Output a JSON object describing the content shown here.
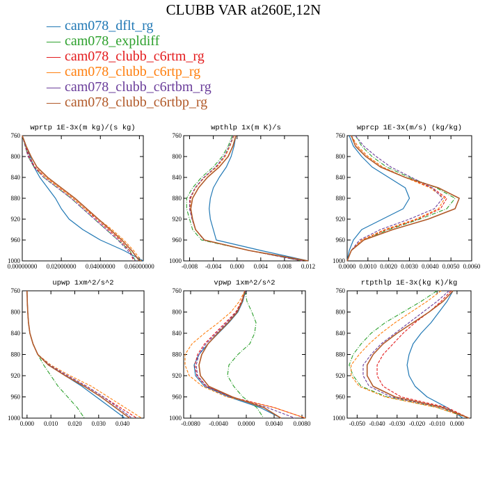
{
  "title": "CLUBB VAR at260E,12N",
  "legend": [
    {
      "name": "cam078_dflt_rg",
      "color": "#1f77b4"
    },
    {
      "name": "cam078_expldiff",
      "color": "#2ca02c"
    },
    {
      "name": "cam078_clubb_c6rtm_rg",
      "color": "#e31a1c"
    },
    {
      "name": "cam078_clubb_c6rtp_rg",
      "color": "#ff7f0e"
    },
    {
      "name": "cam078_clubb_c6rtbm_rg",
      "color": "#6a3d9a"
    },
    {
      "name": "cam078_clubb_c6rtbp_rg",
      "color": "#b15928"
    }
  ],
  "chart_data": [
    {
      "type": "line",
      "title": "wprtp  1E-3x(m kg)/(s kg)",
      "xlim": [
        0.0,
        0.062
      ],
      "ylim": [
        760,
        1000
      ],
      "y_inverted": true,
      "xticks": [
        0,
        0.02,
        0.04,
        0.06
      ],
      "xtick_labels": [
        "0.00000000",
        "0.02000000",
        "0.04000000",
        "0.06000000"
      ],
      "yticks": [
        760,
        800,
        840,
        880,
        920,
        960,
        1000
      ],
      "y": [
        760,
        780,
        800,
        820,
        840,
        860,
        880,
        900,
        920,
        940,
        960,
        980,
        1000
      ],
      "series": [
        {
          "name": "cam078_dflt_rg",
          "x": [
            0.0,
            0.002,
            0.004,
            0.006,
            0.009,
            0.013,
            0.017,
            0.02,
            0.024,
            0.031,
            0.04,
            0.052,
            0.062
          ]
        },
        {
          "name": "cam078_expldiff",
          "x": [
            0.0,
            0.0015,
            0.003,
            0.006,
            0.011,
            0.018,
            0.025,
            0.031,
            0.037,
            0.043,
            0.049,
            0.055,
            0.058
          ]
        },
        {
          "name": "cam078_clubb_c6rtm_rg",
          "x": [
            0.0,
            0.0017,
            0.0035,
            0.0065,
            0.012,
            0.019,
            0.026,
            0.032,
            0.038,
            0.044,
            0.05,
            0.055,
            0.057
          ]
        },
        {
          "name": "cam078_clubb_c6rtp_rg",
          "x": [
            0.0,
            0.0015,
            0.003,
            0.006,
            0.012,
            0.019,
            0.026,
            0.032,
            0.039,
            0.046,
            0.052,
            0.057,
            0.061
          ]
        },
        {
          "name": "cam078_clubb_c6rtbm_rg",
          "x": [
            0.0,
            0.0015,
            0.003,
            0.006,
            0.011,
            0.018,
            0.025,
            0.031,
            0.037,
            0.043,
            0.049,
            0.054,
            0.058
          ]
        },
        {
          "name": "cam078_clubb_c6rtbp_rg",
          "x": [
            0.0,
            0.002,
            0.0045,
            0.0075,
            0.013,
            0.02,
            0.027,
            0.033,
            0.039,
            0.045,
            0.051,
            0.056,
            0.06
          ]
        }
      ]
    },
    {
      "type": "line",
      "title": "wpthlp  1x(m K)/s",
      "xlim": [
        -0.009,
        0.012
      ],
      "ylim": [
        760,
        1000
      ],
      "y_inverted": true,
      "xticks": [
        -0.008,
        -0.004,
        0.0,
        0.004,
        0.008,
        0.012
      ],
      "xtick_labels": [
        "-0.008",
        "-0.004",
        "0.000",
        "0.004",
        "0.008",
        "0.012"
      ],
      "yticks": [
        760,
        800,
        840,
        880,
        920,
        960,
        1000
      ],
      "y": [
        760,
        780,
        800,
        820,
        840,
        860,
        880,
        900,
        920,
        940,
        960,
        980,
        1000
      ],
      "series": [
        {
          "name": "cam078_dflt_rg",
          "x": [
            -0.0002,
            -0.0005,
            -0.001,
            -0.0018,
            -0.003,
            -0.004,
            -0.0045,
            -0.0047,
            -0.0045,
            -0.004,
            -0.0035,
            0.004,
            0.012
          ]
        },
        {
          "name": "cam078_expldiff",
          "x": [
            -0.0008,
            -0.0015,
            -0.0025,
            -0.004,
            -0.006,
            -0.0075,
            -0.0085,
            -0.0085,
            -0.008,
            -0.0075,
            -0.006,
            0.002,
            0.011
          ]
        },
        {
          "name": "cam078_clubb_c6rtm_rg",
          "x": [
            -0.0006,
            -0.0012,
            -0.002,
            -0.0035,
            -0.0055,
            -0.007,
            -0.008,
            -0.008,
            -0.0075,
            -0.007,
            -0.0055,
            0.002,
            0.011
          ]
        },
        {
          "name": "cam078_clubb_c6rtp_rg",
          "x": [
            -0.0005,
            -0.0012,
            -0.002,
            -0.0034,
            -0.0055,
            -0.007,
            -0.0078,
            -0.0079,
            -0.0075,
            -0.007,
            -0.0055,
            0.002,
            0.011
          ]
        },
        {
          "name": "cam078_clubb_c6rtbm_rg",
          "x": [
            -0.0006,
            -0.0013,
            -0.0022,
            -0.0036,
            -0.0056,
            -0.0071,
            -0.0079,
            -0.008,
            -0.0076,
            -0.007,
            -0.0056,
            0.002,
            0.011
          ]
        },
        {
          "name": "cam078_clubb_c6rtbp_rg",
          "x": [
            -0.0002,
            -0.0007,
            -0.0015,
            -0.003,
            -0.005,
            -0.0065,
            -0.0075,
            -0.0078,
            -0.0075,
            -0.007,
            -0.0055,
            0.002,
            0.012
          ]
        }
      ]
    },
    {
      "type": "line",
      "title": "wprcp  1E-3x(m/s) (kg/kg)",
      "xlim": [
        0.0,
        0.006
      ],
      "ylim": [
        760,
        1000
      ],
      "y_inverted": true,
      "xticks": [
        0,
        0.001,
        0.002,
        0.003,
        0.004,
        0.005,
        0.006
      ],
      "xtick_labels": [
        "0.0000",
        "0.0010",
        "0.0020",
        "0.0030",
        "0.0040",
        "0.0050",
        "0.0060"
      ],
      "yticks": [
        760,
        800,
        840,
        880,
        920,
        960,
        1000
      ],
      "y": [
        760,
        780,
        800,
        820,
        840,
        860,
        880,
        900,
        920,
        940,
        960,
        980,
        1000
      ],
      "series": [
        {
          "name": "cam078_dflt_rg",
          "x": [
            0.0001,
            0.0003,
            0.0007,
            0.0012,
            0.002,
            0.0028,
            0.003,
            0.0027,
            0.0017,
            0.0007,
            0.0003,
            0.0001,
            0.0
          ]
        },
        {
          "name": "cam078_expldiff",
          "x": [
            0.0004,
            0.0007,
            0.0012,
            0.0019,
            0.003,
            0.0043,
            0.0052,
            0.0048,
            0.0035,
            0.002,
            0.0008,
            0.0002,
            0.0
          ]
        },
        {
          "name": "cam078_clubb_c6rtm_rg",
          "x": [
            0.0002,
            0.0005,
            0.001,
            0.0017,
            0.0028,
            0.0041,
            0.0048,
            0.0045,
            0.0034,
            0.0019,
            0.0007,
            0.0002,
            0.0
          ]
        },
        {
          "name": "cam078_clubb_c6rtp_rg",
          "x": [
            0.0002,
            0.0005,
            0.001,
            0.0017,
            0.0028,
            0.004,
            0.0047,
            0.0044,
            0.0033,
            0.0018,
            0.0007,
            0.0002,
            0.0
          ]
        },
        {
          "name": "cam078_clubb_c6rtbm_rg",
          "x": [
            0.0004,
            0.0008,
            0.0014,
            0.0021,
            0.0031,
            0.0041,
            0.0046,
            0.0042,
            0.003,
            0.0016,
            0.0006,
            0.0002,
            0.0
          ]
        },
        {
          "name": "cam078_clubb_c6rtbp_rg",
          "x": [
            0.0002,
            0.0004,
            0.0009,
            0.0016,
            0.0028,
            0.0044,
            0.0054,
            0.0052,
            0.0039,
            0.0022,
            0.0008,
            0.0002,
            0.0
          ]
        }
      ]
    },
    {
      "type": "line",
      "title": "upwp  1xm^2/s^2",
      "xlim": [
        -0.002,
        0.049
      ],
      "ylim": [
        760,
        1000
      ],
      "y_inverted": true,
      "xticks": [
        0,
        0.01,
        0.02,
        0.03,
        0.04
      ],
      "xtick_labels": [
        "0.000",
        "0.010",
        "0.020",
        "0.030",
        "0.040"
      ],
      "yticks": [
        760,
        800,
        840,
        880,
        920,
        960,
        1000
      ],
      "y": [
        760,
        780,
        800,
        820,
        840,
        860,
        880,
        900,
        920,
        940,
        960,
        980,
        1000
      ],
      "series": [
        {
          "name": "cam078_dflt_rg",
          "x": [
            0.0,
            0.0001,
            0.0003,
            0.0006,
            0.0012,
            0.0025,
            0.0045,
            0.009,
            0.016,
            0.023,
            0.029,
            0.035,
            0.041
          ]
        },
        {
          "name": "cam078_expldiff",
          "x": [
            0.0,
            0.0001,
            0.0003,
            0.0006,
            0.0012,
            0.0025,
            0.0045,
            0.007,
            0.01,
            0.013,
            0.017,
            0.021,
            0.024
          ]
        },
        {
          "name": "cam078_clubb_c6rtm_rg",
          "x": [
            0.0,
            0.0001,
            0.0003,
            0.0006,
            0.0012,
            0.0025,
            0.0045,
            0.009,
            0.017,
            0.025,
            0.032,
            0.039,
            0.046
          ]
        },
        {
          "name": "cam078_clubb_c6rtp_rg",
          "x": [
            0.0,
            0.0001,
            0.0003,
            0.0006,
            0.0012,
            0.0025,
            0.0045,
            0.01,
            0.018,
            0.027,
            0.034,
            0.041,
            0.048
          ]
        },
        {
          "name": "cam078_clubb_c6rtbm_rg",
          "x": [
            0.0,
            0.0001,
            0.0003,
            0.0006,
            0.0012,
            0.0025,
            0.0045,
            0.0095,
            0.017,
            0.025,
            0.032,
            0.038,
            0.044
          ]
        },
        {
          "name": "cam078_clubb_c6rtbp_rg",
          "x": [
            0.0,
            0.0001,
            0.0003,
            0.0006,
            0.0012,
            0.0025,
            0.0045,
            0.009,
            0.016,
            0.024,
            0.031,
            0.037,
            0.043
          ]
        }
      ]
    },
    {
      "type": "line",
      "title": "vpwp  1xm^2/s^2",
      "xlim": [
        -0.009,
        0.0085
      ],
      "ylim": [
        760,
        1000
      ],
      "y_inverted": true,
      "xticks": [
        -0.008,
        -0.004,
        0.0,
        0.004,
        0.008
      ],
      "xtick_labels": [
        "-0.0080",
        "-0.0040",
        "0.0000",
        "0.0040",
        "0.0080"
      ],
      "yticks": [
        760,
        800,
        840,
        880,
        920,
        960,
        1000
      ],
      "y": [
        760,
        780,
        800,
        820,
        840,
        860,
        880,
        900,
        920,
        940,
        960,
        980,
        1000
      ],
      "series": [
        {
          "name": "cam078_dflt_rg",
          "x": [
            -0.0001,
            -0.0005,
            -0.0012,
            -0.0025,
            -0.004,
            -0.0055,
            -0.0068,
            -0.0075,
            -0.0073,
            -0.006,
            -0.0025,
            0.002,
            0.005
          ]
        },
        {
          "name": "cam078_expldiff",
          "x": [
            -0.0002,
            0.0001,
            0.0008,
            0.0014,
            0.0012,
            0.0005,
            -0.0012,
            -0.0025,
            -0.0027,
            -0.0018,
            -0.0005,
            0.0015,
            0.0025
          ]
        },
        {
          "name": "cam078_clubb_c6rtm_rg",
          "x": [
            -0.0002,
            -0.0007,
            -0.0015,
            -0.003,
            -0.0045,
            -0.006,
            -0.007,
            -0.0074,
            -0.0071,
            -0.0058,
            -0.0022,
            0.004,
            0.0085
          ]
        },
        {
          "name": "cam078_clubb_c6rtp_rg",
          "x": [
            -0.0002,
            -0.001,
            -0.0022,
            -0.004,
            -0.006,
            -0.0078,
            -0.0088,
            -0.0088,
            -0.0082,
            -0.0063,
            -0.0028,
            0.004,
            0.0085
          ]
        },
        {
          "name": "cam078_clubb_c6rtbm_rg",
          "x": [
            -0.0001,
            -0.0006,
            -0.0014,
            -0.0028,
            -0.0043,
            -0.0058,
            -0.0068,
            -0.0072,
            -0.007,
            -0.0057,
            -0.0022,
            0.003,
            0.007
          ]
        },
        {
          "name": "cam078_clubb_c6rtbp_rg",
          "x": [
            -0.0002,
            -0.0006,
            -0.0013,
            -0.0026,
            -0.0041,
            -0.0055,
            -0.0064,
            -0.0068,
            -0.0066,
            -0.0054,
            -0.002,
            0.0025,
            0.005
          ]
        }
      ]
    },
    {
      "type": "line",
      "title": "rtpthlp  1E-3x(kg K)/kg",
      "xlim": [
        -0.055,
        0.007
      ],
      "ylim": [
        760,
        1000
      ],
      "y_inverted": true,
      "xticks": [
        -0.05,
        -0.04,
        -0.03,
        -0.02,
        -0.01,
        0.0
      ],
      "xtick_labels": [
        "-0.050",
        "-0.040",
        "-0.030",
        "-0.020",
        "-0.010",
        "0.000"
      ],
      "yticks": [
        760,
        800,
        840,
        880,
        920,
        960,
        1000
      ],
      "y": [
        760,
        780,
        800,
        820,
        840,
        860,
        880,
        900,
        920,
        940,
        960,
        980,
        1000
      ],
      "series": [
        {
          "name": "cam078_dflt_rg",
          "x": [
            -0.002,
            -0.005,
            -0.009,
            -0.013,
            -0.018,
            -0.022,
            -0.024,
            -0.025,
            -0.024,
            -0.021,
            -0.015,
            -0.005,
            0.003
          ]
        },
        {
          "name": "cam078_expldiff",
          "x": [
            -0.01,
            -0.018,
            -0.027,
            -0.036,
            -0.043,
            -0.048,
            -0.052,
            -0.054,
            -0.052,
            -0.048,
            -0.035,
            -0.01,
            0.006
          ]
        },
        {
          "name": "cam078_clubb_c6rtm_rg",
          "x": [
            -0.003,
            -0.008,
            -0.014,
            -0.021,
            -0.027,
            -0.032,
            -0.037,
            -0.04,
            -0.04,
            -0.037,
            -0.028,
            -0.005,
            0.006
          ]
        },
        {
          "name": "cam078_clubb_c6rtp_rg",
          "x": [
            -0.008,
            -0.015,
            -0.023,
            -0.031,
            -0.038,
            -0.044,
            -0.049,
            -0.053,
            -0.053,
            -0.049,
            -0.036,
            -0.01,
            0.006
          ]
        },
        {
          "name": "cam078_clubb_c6rtbm_rg",
          "x": [
            -0.004,
            -0.01,
            -0.017,
            -0.024,
            -0.031,
            -0.038,
            -0.043,
            -0.047,
            -0.047,
            -0.044,
            -0.033,
            -0.008,
            0.006
          ]
        },
        {
          "name": "cam078_clubb_c6rtbp_rg",
          "x": [
            -0.002,
            -0.007,
            -0.014,
            -0.022,
            -0.03,
            -0.037,
            -0.042,
            -0.045,
            -0.045,
            -0.042,
            -0.031,
            -0.007,
            0.006
          ]
        }
      ]
    }
  ]
}
